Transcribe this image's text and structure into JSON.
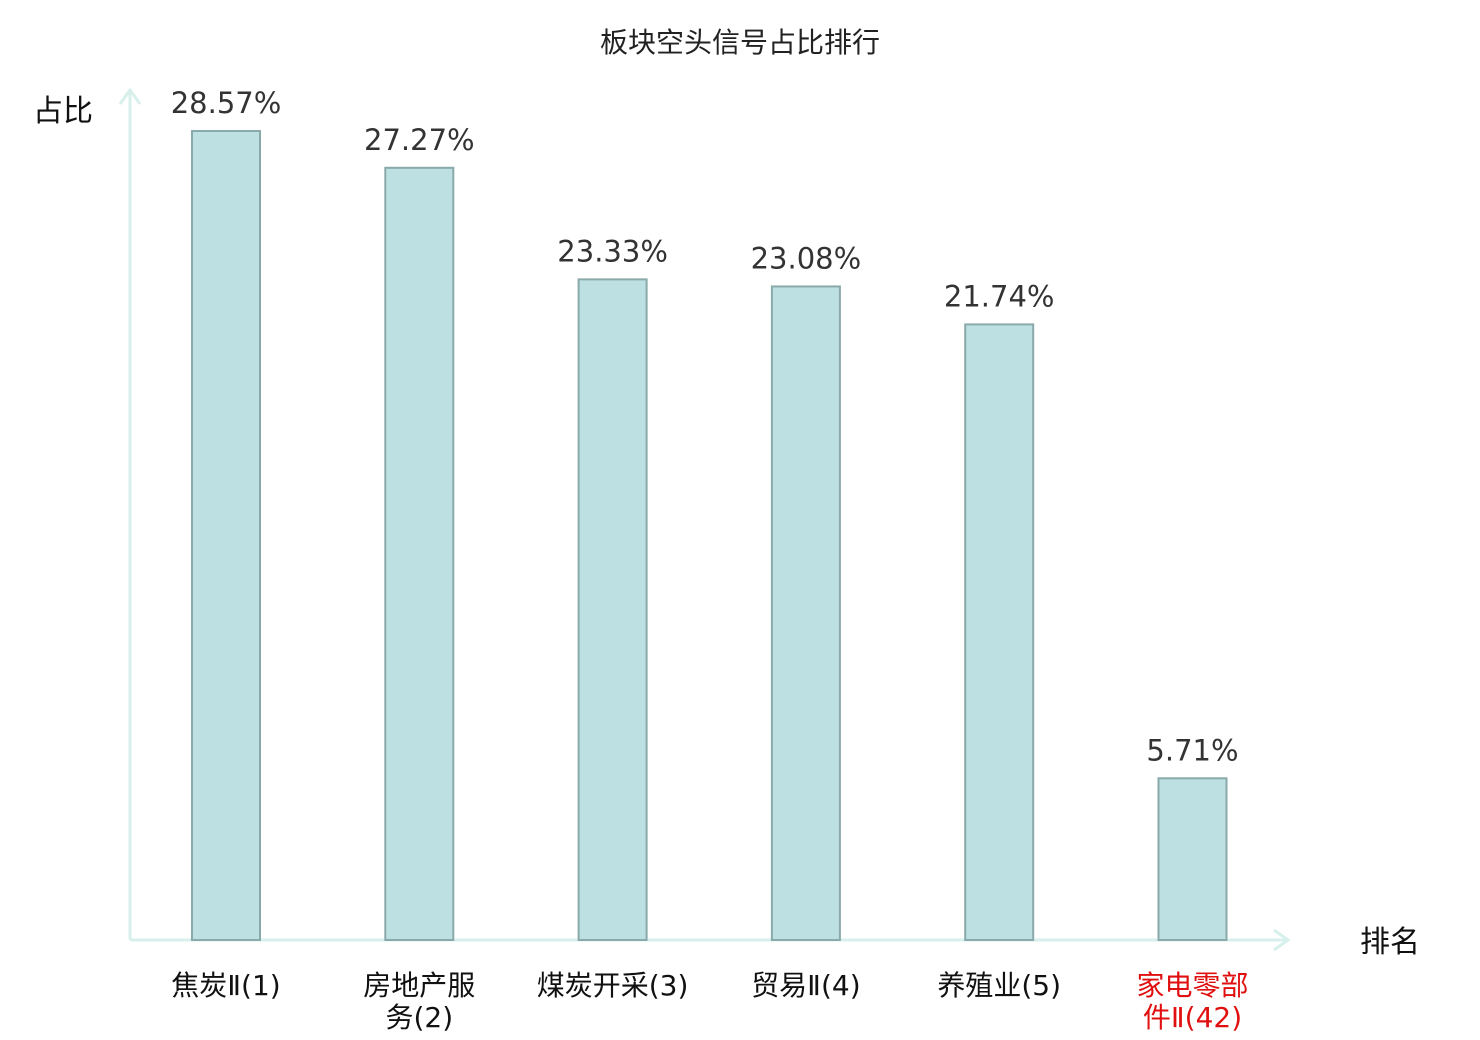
{
  "chart_data": {
    "type": "bar",
    "title": "板块空头信号占比排行",
    "ylabel": "占比",
    "xlabel": "排名",
    "categories": [
      [
        "焦炭Ⅱ(1)"
      ],
      [
        "房地产服",
        "务(2)"
      ],
      [
        "煤炭开采(3)"
      ],
      [
        "贸易Ⅱ(4)"
      ],
      [
        "养殖业(5)"
      ],
      [
        "家电零部",
        "件Ⅱ(42)"
      ]
    ],
    "values": [
      28.57,
      27.27,
      23.33,
      23.08,
      21.74,
      5.71
    ],
    "value_labels": [
      "28.57%",
      "27.27%",
      "23.33%",
      "23.08%",
      "21.74%",
      "5.71%"
    ],
    "highlight_index": 5,
    "ylim": [
      0,
      28.57
    ],
    "grid": false,
    "legend": "none"
  },
  "colors": {
    "bar_fill": "#bde0e2",
    "bar_stroke": "#8aa9aa",
    "axis": "#d8f0ec",
    "label_default": "#111111",
    "label_highlight": "#e01010"
  }
}
